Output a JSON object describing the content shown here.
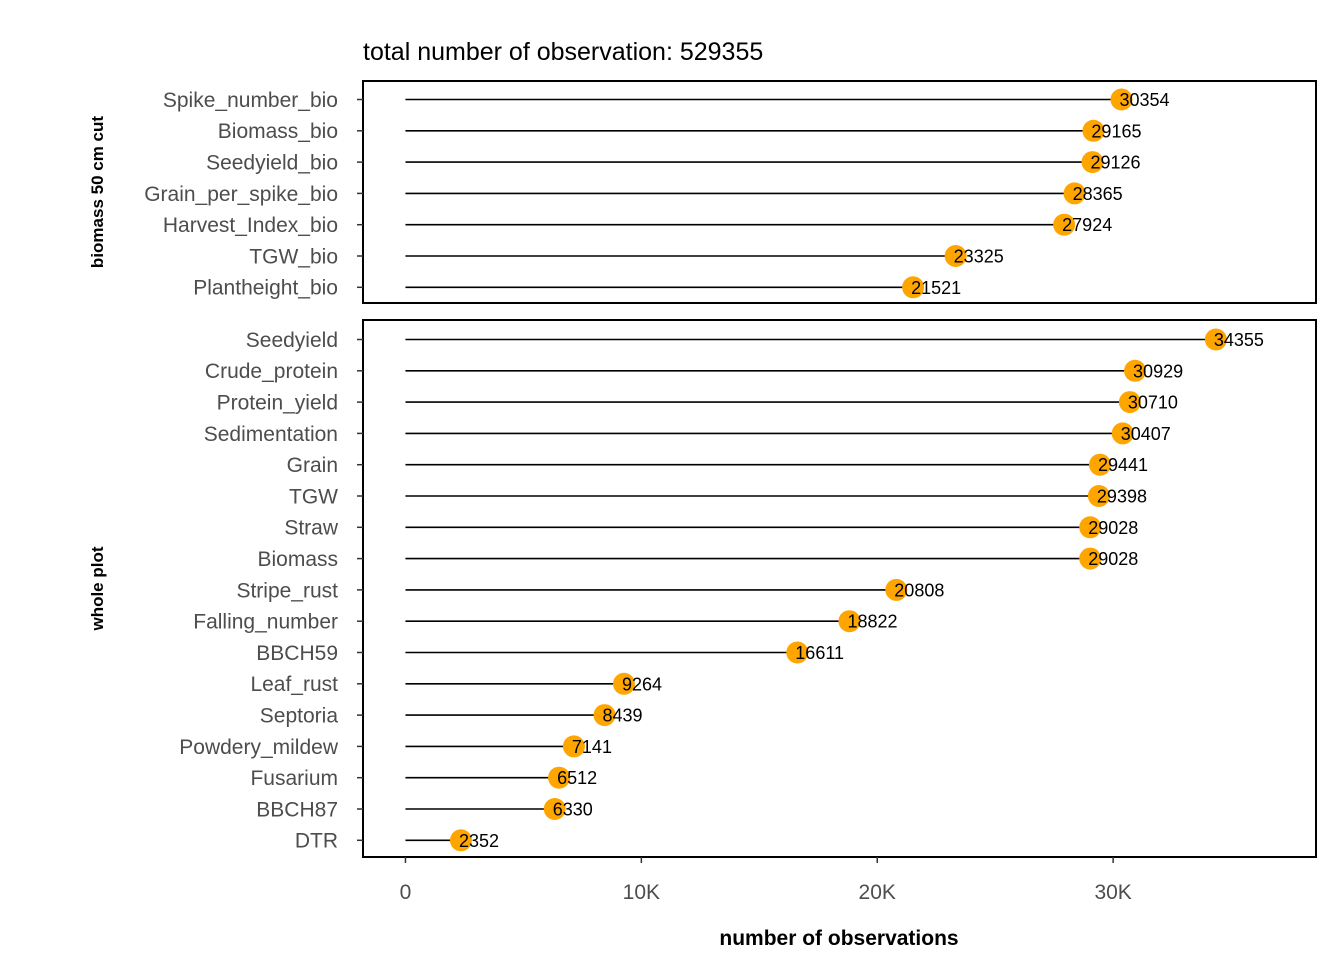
{
  "chart_data": {
    "type": "lollipop",
    "title": "total number of observation: 529355",
    "xlabel": "number of observations",
    "xlim": [
      -1800,
      38600
    ],
    "x_ticks": [
      0,
      10000,
      20000,
      30000
    ],
    "x_tick_labels": [
      "0",
      "10K",
      "20K",
      "30K"
    ],
    "point_color": "#FFA500",
    "line_color": "#000000",
    "grid": false,
    "panels": [
      {
        "name": "biomass 50 cm cut",
        "categories": [
          "Spike_number_bio",
          "Biomass_bio",
          "Seedyield_bio",
          "Grain_per_spike_bio",
          "Harvest_Index_bio",
          "TGW_bio",
          "Plantheight_bio"
        ],
        "values": [
          30354,
          29165,
          29126,
          28365,
          27924,
          23325,
          21521
        ]
      },
      {
        "name": "whole plot",
        "categories": [
          "Seedyield",
          "Crude_protein",
          "Protein_yield",
          "Sedimentation",
          "Grain",
          "TGW",
          "Straw",
          "Biomass",
          "Stripe_rust",
          "Falling_number",
          "BBCH59",
          "Leaf_rust",
          "Septoria",
          "Powdery_mildew",
          "Fusarium",
          "BBCH87",
          "DTR"
        ],
        "values": [
          34355,
          30929,
          30710,
          30407,
          29441,
          29398,
          29028,
          29028,
          20808,
          18822,
          16611,
          9264,
          8439,
          7141,
          6512,
          6330,
          2352
        ]
      }
    ]
  }
}
